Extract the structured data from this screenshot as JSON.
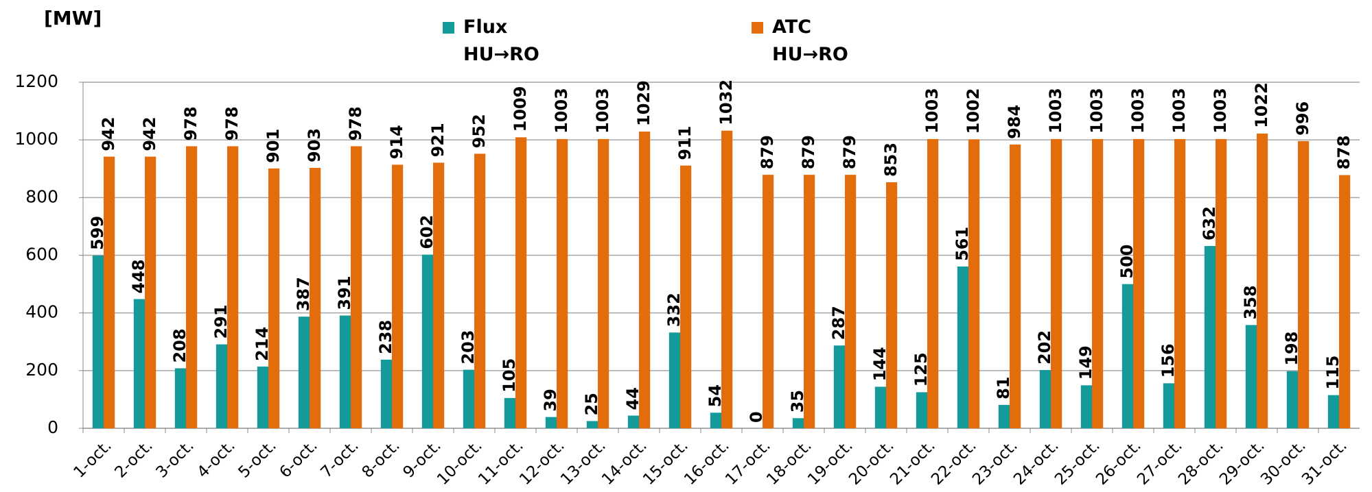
{
  "chart_data": {
    "type": "bar",
    "y_label": "[MW]",
    "categories": [
      "1-oct.",
      "2-oct.",
      "3-oct.",
      "4-oct.",
      "5-oct.",
      "6-oct.",
      "7-oct.",
      "8-oct.",
      "9-oct.",
      "10-oct.",
      "11-oct.",
      "12-oct.",
      "13-oct.",
      "14-oct.",
      "15-oct.",
      "16-oct.",
      "17-oct.",
      "18-oct.",
      "19-oct.",
      "20-oct.",
      "21-oct.",
      "22-oct.",
      "23-oct.",
      "24-oct.",
      "25-oct.",
      "26-oct.",
      "27-oct.",
      "28-oct.",
      "29-oct.",
      "30-oct.",
      "31-oct."
    ],
    "series": [
      {
        "name": "Flux HU→RO",
        "color": "#139a9a",
        "values": [
          599,
          448,
          208,
          291,
          214,
          387,
          391,
          238,
          602,
          203,
          105,
          39,
          25,
          44,
          332,
          54,
          0,
          35,
          287,
          144,
          125,
          561,
          81,
          202,
          149,
          500,
          156,
          632,
          358,
          198,
          115
        ]
      },
      {
        "name": "ATC HU→RO",
        "color": "#e46c0a",
        "values": [
          942,
          942,
          978,
          978,
          901,
          903,
          978,
          914,
          921,
          952,
          1009,
          1003,
          1003,
          1029,
          911,
          1032,
          879,
          879,
          879,
          853,
          1003,
          1002,
          984,
          1003,
          1003,
          1003,
          1003,
          1003,
          1022,
          996,
          878
        ]
      }
    ],
    "ylim": [
      0,
      1200
    ],
    "yticks": [
      0,
      200,
      400,
      600,
      800,
      1000,
      1200
    ],
    "grid": true
  }
}
